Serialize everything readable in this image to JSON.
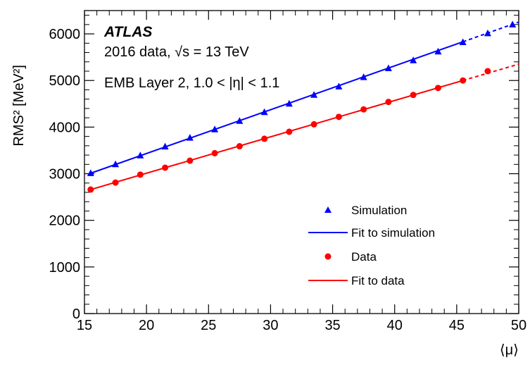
{
  "chart_data": {
    "type": "scatter",
    "xlabel": "⟨μ⟩",
    "ylabel": "RMS² [MeV²]",
    "xlim": [
      15,
      50
    ],
    "ylim": [
      0,
      6500
    ],
    "x_ticks": [
      15,
      20,
      25,
      30,
      35,
      40,
      45,
      50
    ],
    "y_ticks": [
      0,
      1000,
      2000,
      3000,
      4000,
      5000,
      6000
    ],
    "grid": false,
    "legend_position": "lower-right",
    "annotations": {
      "experiment": "ATLAS",
      "dataset": "2016 data, √s = 13 TeV",
      "region": "EMB Layer 2, 1.0 < |η| < 1.1"
    },
    "series": [
      {
        "name": "Simulation",
        "marker": "triangle",
        "color": "#0000ff",
        "x": [
          15.5,
          17.5,
          19.5,
          21.5,
          23.5,
          25.5,
          27.5,
          29.5,
          31.5,
          33.5,
          35.5,
          37.5,
          39.5,
          41.5,
          43.5,
          45.5,
          47.5,
          49.5
        ],
        "y": [
          3010,
          3200,
          3390,
          3580,
          3770,
          3950,
          4130,
          4320,
          4500,
          4690,
          4870,
          5070,
          5260,
          5430,
          5620,
          5820,
          6010,
          6200
        ]
      },
      {
        "name": "Fit to simulation",
        "type": "line",
        "color": "#0000ff",
        "solid_range": [
          15.5,
          45.5
        ],
        "dashed_range": [
          45.5,
          50
        ],
        "slope": 94.0,
        "intercept": 1553
      },
      {
        "name": "Data",
        "marker": "circle",
        "color": "#ff0000",
        "x": [
          15.5,
          17.5,
          19.5,
          21.5,
          23.5,
          25.5,
          27.5,
          29.5,
          31.5,
          33.5,
          35.5,
          37.5,
          39.5,
          41.5,
          43.5,
          45.5,
          47.5
        ],
        "y": [
          2660,
          2810,
          2980,
          3130,
          3280,
          3440,
          3590,
          3750,
          3900,
          4060,
          4220,
          4380,
          4540,
          4690,
          4840,
          5000,
          5200
        ]
      },
      {
        "name": "Fit to data",
        "type": "line",
        "color": "#ff0000",
        "solid_range": [
          15.5,
          45.5
        ],
        "dashed_range": [
          45.5,
          50
        ],
        "slope": 78.0,
        "intercept": 1451
      }
    ]
  }
}
